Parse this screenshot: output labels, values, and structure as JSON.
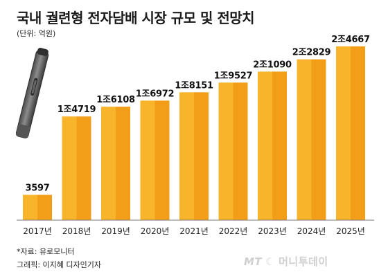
{
  "title": "국내 궐련형 전자담배 시장 규모 및 전망치",
  "unit_note": "(단위: 억원)",
  "source": "*자료: 유로모니터",
  "credit": "그래픽: 이지혜 디자인기자",
  "watermark": {
    "prefix": "MT",
    "name": "머니투데이"
  },
  "colors": {
    "bar_light": "#f8b42a",
    "bar_dark": "#f29e18",
    "axis": "#7a7a7a"
  },
  "icon": "e-cigarette-device-illustration",
  "chart_data": {
    "type": "bar",
    "categories": [
      "2017년",
      "2018년",
      "2019년",
      "2020년",
      "2021년",
      "2022년",
      "2023년",
      "2024년",
      "2025년"
    ],
    "values": [
      3597,
      14719,
      16108,
      16972,
      18151,
      19527,
      21090,
      22829,
      24667
    ],
    "data_labels": [
      "3597",
      "1조4719",
      "1조6108",
      "1조6972",
      "1조8151",
      "1조9527",
      "2조1090",
      "2조2829",
      "2조4667"
    ],
    "title": "국내 궐련형 전자담배 시장 규모 및 전망치",
    "xlabel": "",
    "ylabel": "",
    "ylim": [
      0,
      26000
    ],
    "grid": false,
    "legend": "none"
  }
}
